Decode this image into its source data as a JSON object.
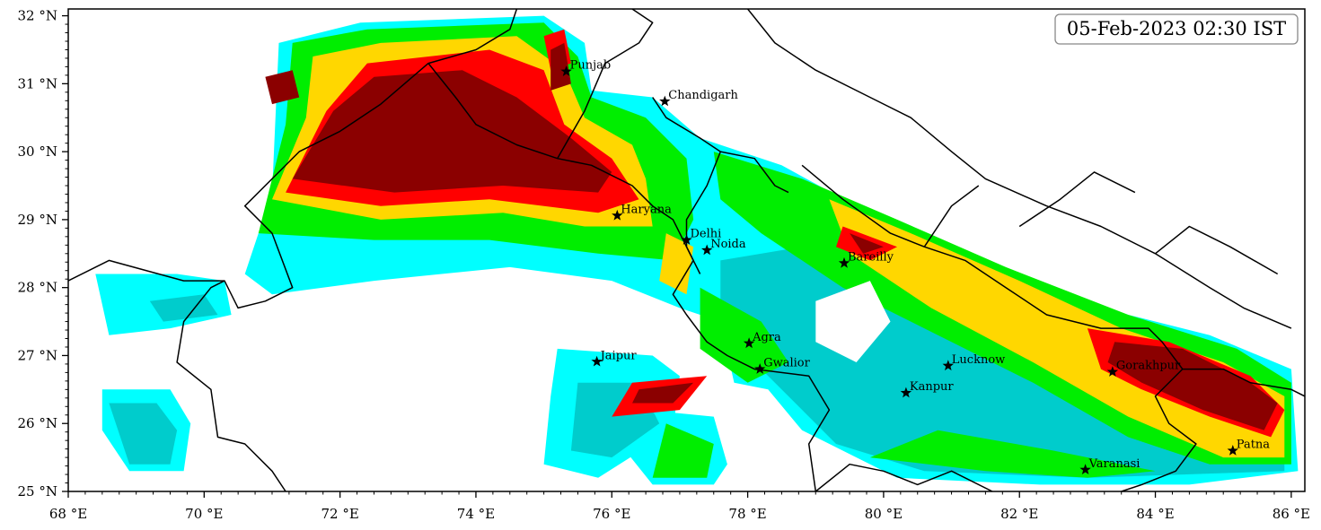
{
  "timestamp": "05-Feb-2023 02:30 IST",
  "axes": {
    "lon_range": [
      68,
      86.2
    ],
    "lat_range": [
      25,
      32.1
    ],
    "x_ticks": [
      {
        "value": 68,
        "label": "68 °E"
      },
      {
        "value": 70,
        "label": "70 °E"
      },
      {
        "value": 72,
        "label": "72 °E"
      },
      {
        "value": 74,
        "label": "74 °E"
      },
      {
        "value": 76,
        "label": "76 °E"
      },
      {
        "value": 78,
        "label": "78 °E"
      },
      {
        "value": 80,
        "label": "80 °E"
      },
      {
        "value": 82,
        "label": "82 °E"
      },
      {
        "value": 84,
        "label": "84 °E"
      },
      {
        "value": 86,
        "label": "86 °E"
      }
    ],
    "y_ticks": [
      {
        "value": 25,
        "label": "25 °N"
      },
      {
        "value": 26,
        "label": "26 °N"
      },
      {
        "value": 27,
        "label": "27 °N"
      },
      {
        "value": 28,
        "label": "28 °N"
      },
      {
        "value": 29,
        "label": "29 °N"
      },
      {
        "value": 30,
        "label": "30 °N"
      },
      {
        "value": 31,
        "label": "31 °N"
      },
      {
        "value": 32,
        "label": "32 °N"
      }
    ]
  },
  "cities": [
    {
      "name": "Punjab",
      "lon": 75.33,
      "lat": 31.18
    },
    {
      "name": "Chandigarh",
      "lon": 76.78,
      "lat": 30.74
    },
    {
      "name": "Haryana",
      "lon": 76.08,
      "lat": 29.06
    },
    {
      "name": "Delhi",
      "lon": 77.1,
      "lat": 28.7
    },
    {
      "name": "Noida",
      "lon": 77.4,
      "lat": 28.55
    },
    {
      "name": "Bareilly",
      "lon": 79.42,
      "lat": 28.36
    },
    {
      "name": "Agra",
      "lon": 78.02,
      "lat": 27.18
    },
    {
      "name": "Jaipur",
      "lon": 75.78,
      "lat": 26.91
    },
    {
      "name": "Gwalior",
      "lon": 78.18,
      "lat": 26.8
    },
    {
      "name": "Lucknow",
      "lon": 80.95,
      "lat": 26.85
    },
    {
      "name": "Kanpur",
      "lon": 80.33,
      "lat": 26.45
    },
    {
      "name": "Gorakhpur",
      "lon": 83.37,
      "lat": 26.76
    },
    {
      "name": "Patna",
      "lon": 85.14,
      "lat": 25.6
    },
    {
      "name": "Varanasi",
      "lon": 82.97,
      "lat": 25.32
    }
  ],
  "colors": {
    "level1": "#00ffff",
    "level2": "#00cccc",
    "level3": "#00ee00",
    "level4": "#33cc33",
    "level5": "#ffd700",
    "level6": "#ff0000",
    "level7": "#8b0000",
    "border": "#000000"
  }
}
